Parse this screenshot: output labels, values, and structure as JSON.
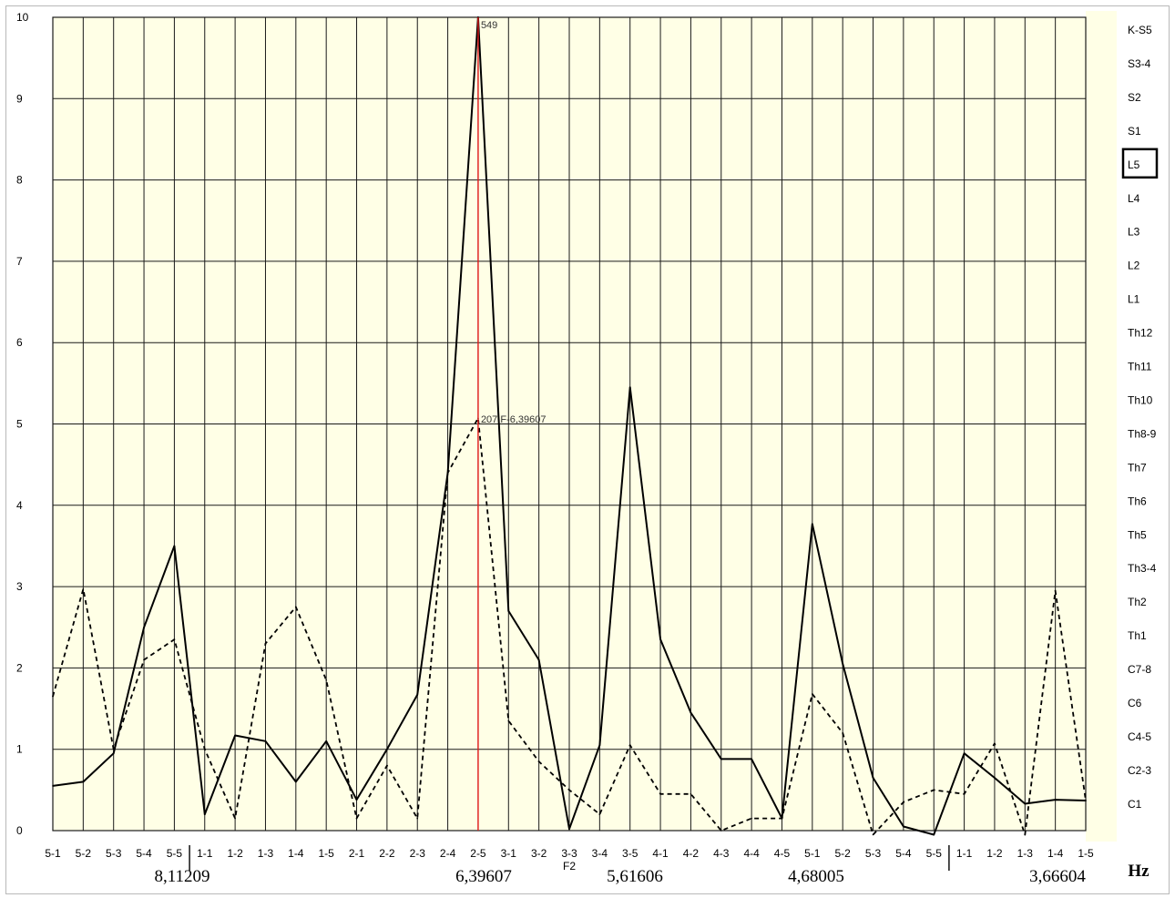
{
  "chart_data": {
    "type": "line",
    "ylim": [
      0,
      10
    ],
    "y_ticks": [
      "0",
      "1",
      "2",
      "3",
      "4",
      "5",
      "6",
      "7",
      "8",
      "9",
      "10"
    ],
    "categories": [
      "5-1",
      "5-2",
      "5-3",
      "5-4",
      "5-5",
      "1-1",
      "1-2",
      "1-3",
      "1-4",
      "1-5",
      "2-1",
      "2-2",
      "2-3",
      "2-4",
      "2-5",
      "3-1",
      "3-2",
      "3-3",
      "3-4",
      "3-5",
      "4-1",
      "4-2",
      "4-3",
      "4-4",
      "4-5",
      "5-1",
      "5-2",
      "5-3",
      "5-4",
      "5-5",
      "1-1",
      "1-2",
      "1-3",
      "1-4",
      "1-5"
    ],
    "grid": true,
    "series": [
      {
        "style": "solid",
        "values": [
          0.55,
          0.6,
          0.95,
          2.5,
          3.5,
          0.2,
          1.17,
          1.1,
          0.6,
          1.1,
          0.38,
          1.0,
          1.67,
          4.4,
          10.0,
          2.7,
          2.1,
          0.02,
          1.05,
          5.45,
          2.35,
          1.45,
          0.88,
          0.88,
          0.15,
          3.77,
          2.05,
          0.65,
          0.05,
          -0.05,
          0.95,
          0.65,
          0.33,
          0.38,
          0.37
        ]
      },
      {
        "style": "dashed",
        "values": [
          1.65,
          2.97,
          1.0,
          2.1,
          2.35,
          1.0,
          0.15,
          2.3,
          2.75,
          1.85,
          0.15,
          0.8,
          0.15,
          4.4,
          5.07,
          1.35,
          0.85,
          0.5,
          0.2,
          1.05,
          0.45,
          0.45,
          0.0,
          0.15,
          0.15,
          1.68,
          1.2,
          -0.05,
          0.35,
          0.5,
          0.45,
          1.07,
          -0.05,
          2.95,
          0.37
        ]
      }
    ],
    "marker_category_index": 14,
    "annotations": {
      "peak": "549",
      "dashed_peak": "207 F-6,39607",
      "marker_label": "F2"
    },
    "frequency_labels": [
      "8,11209",
      "6,39607",
      "5,61606",
      "4,68005",
      "3,66604"
    ],
    "unit_label": "Hz",
    "side_labels": [
      "K-S5",
      "S3-4",
      "S2",
      "S1",
      "L5",
      "L4",
      "L3",
      "L2",
      "L1",
      "Th12",
      "Th11",
      "Th10",
      "Th8-9",
      "Th7",
      "Th6",
      "Th5",
      "Th3-4",
      "Th2",
      "Th1",
      "C7-8",
      "C6",
      "C4-5",
      "C2-3",
      "C1"
    ],
    "selected_side_label": "L5",
    "colors": {
      "background": "#ffffe6",
      "grid": "#1a1a1a",
      "series": "#000000",
      "marker": "#e31b1b"
    }
  }
}
